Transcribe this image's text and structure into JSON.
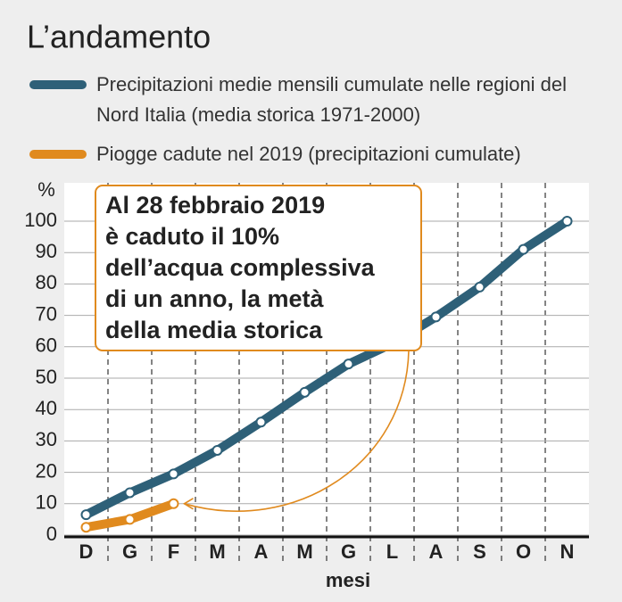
{
  "chart_data": {
    "type": "line",
    "title": "L’andamento",
    "categories": [
      "D",
      "G",
      "F",
      "M",
      "A",
      "M",
      "G",
      "L",
      "A",
      "S",
      "O",
      "N"
    ],
    "series": [
      {
        "name": "Precipitazioni medie mensili cumulate nelle regioni del Nord Italia (media storica 1971-2000)",
        "color": "#2e6078",
        "values": [
          6.5,
          13.5,
          19.5,
          27,
          36,
          45.5,
          54.5,
          61,
          69.5,
          79,
          91,
          100
        ]
      },
      {
        "name": "Piogge cadute nel 2019 (precipitazioni cumulate)",
        "color": "#e08a1e",
        "values": [
          2.5,
          5,
          10,
          null,
          null,
          null,
          null,
          null,
          null,
          null,
          null,
          null
        ]
      }
    ],
    "ylabel": "%",
    "xlabel": "mesi",
    "ylim": [
      0,
      100
    ],
    "yticks": [
      0,
      10,
      20,
      30,
      40,
      50,
      60,
      70,
      80,
      90,
      100
    ],
    "grid": true,
    "annotation": [
      "Al 28 febbraio 2019",
      "è caduto il 10%",
      "dell’acqua complessiva",
      "di un anno, la metà",
      "della media storica"
    ]
  }
}
